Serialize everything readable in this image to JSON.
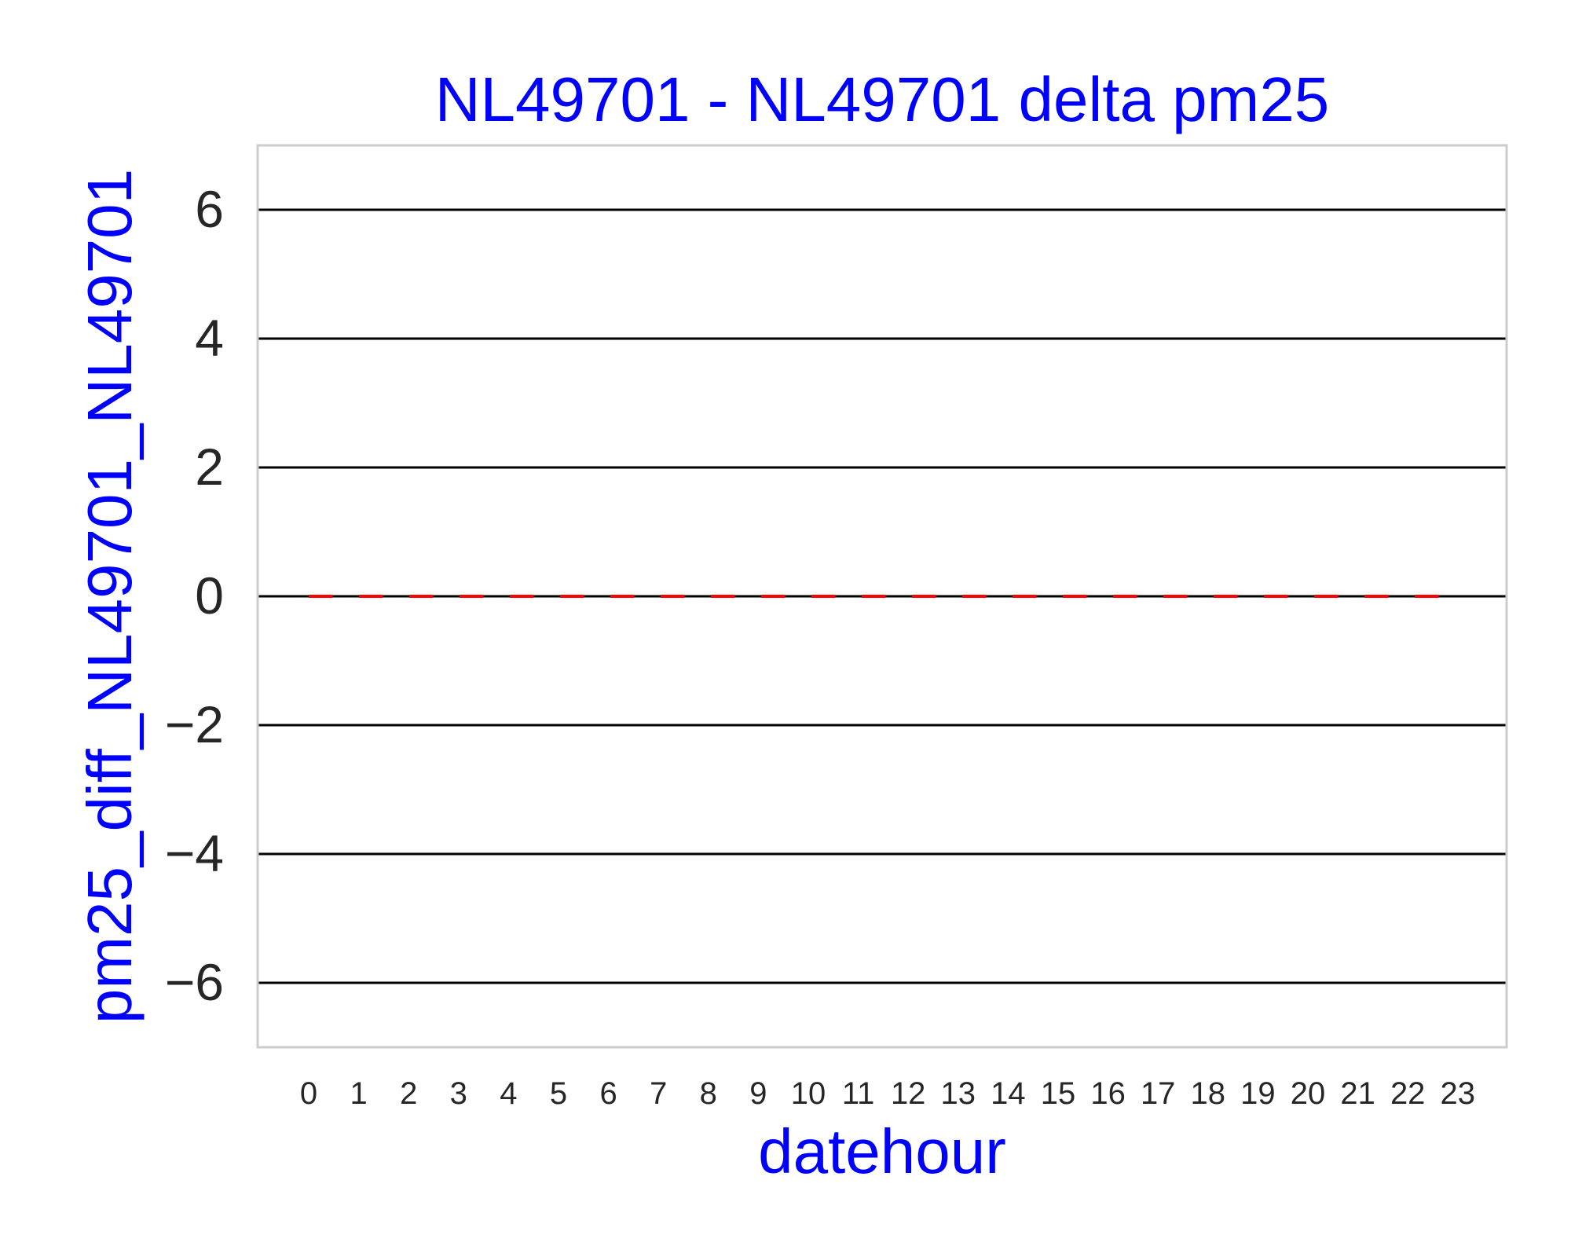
{
  "chart_data": {
    "type": "line",
    "title": "NL49701 - NL49701 delta pm25",
    "xlabel": "datehour",
    "ylabel": "pm25_diff_NL49701_NL49701",
    "categories": [
      "0",
      "1",
      "2",
      "3",
      "4",
      "5",
      "6",
      "7",
      "8",
      "9",
      "10",
      "11",
      "12",
      "13",
      "14",
      "15",
      "16",
      "17",
      "18",
      "19",
      "20",
      "21",
      "22",
      "23"
    ],
    "yticks": [
      6,
      4,
      2,
      0,
      -2,
      -4,
      -6
    ],
    "ytick_labels": [
      "6",
      "4",
      "2",
      "0",
      "−2",
      "−4",
      "−6"
    ],
    "ylim": [
      -7,
      7
    ],
    "grid": true,
    "series": [
      {
        "values": [
          0,
          0,
          0,
          0,
          0,
          0,
          0,
          0,
          0,
          0,
          0,
          0,
          0,
          0,
          0,
          0,
          0,
          0,
          0,
          0,
          0,
          0,
          0,
          0
        ],
        "color": "#ff0000",
        "style": "dashed"
      }
    ],
    "colors": {
      "title": "#0000ff",
      "axis_label": "#0000ff",
      "tick_label": "#262626",
      "grid": "#000000",
      "frame": "#cccccc"
    }
  }
}
